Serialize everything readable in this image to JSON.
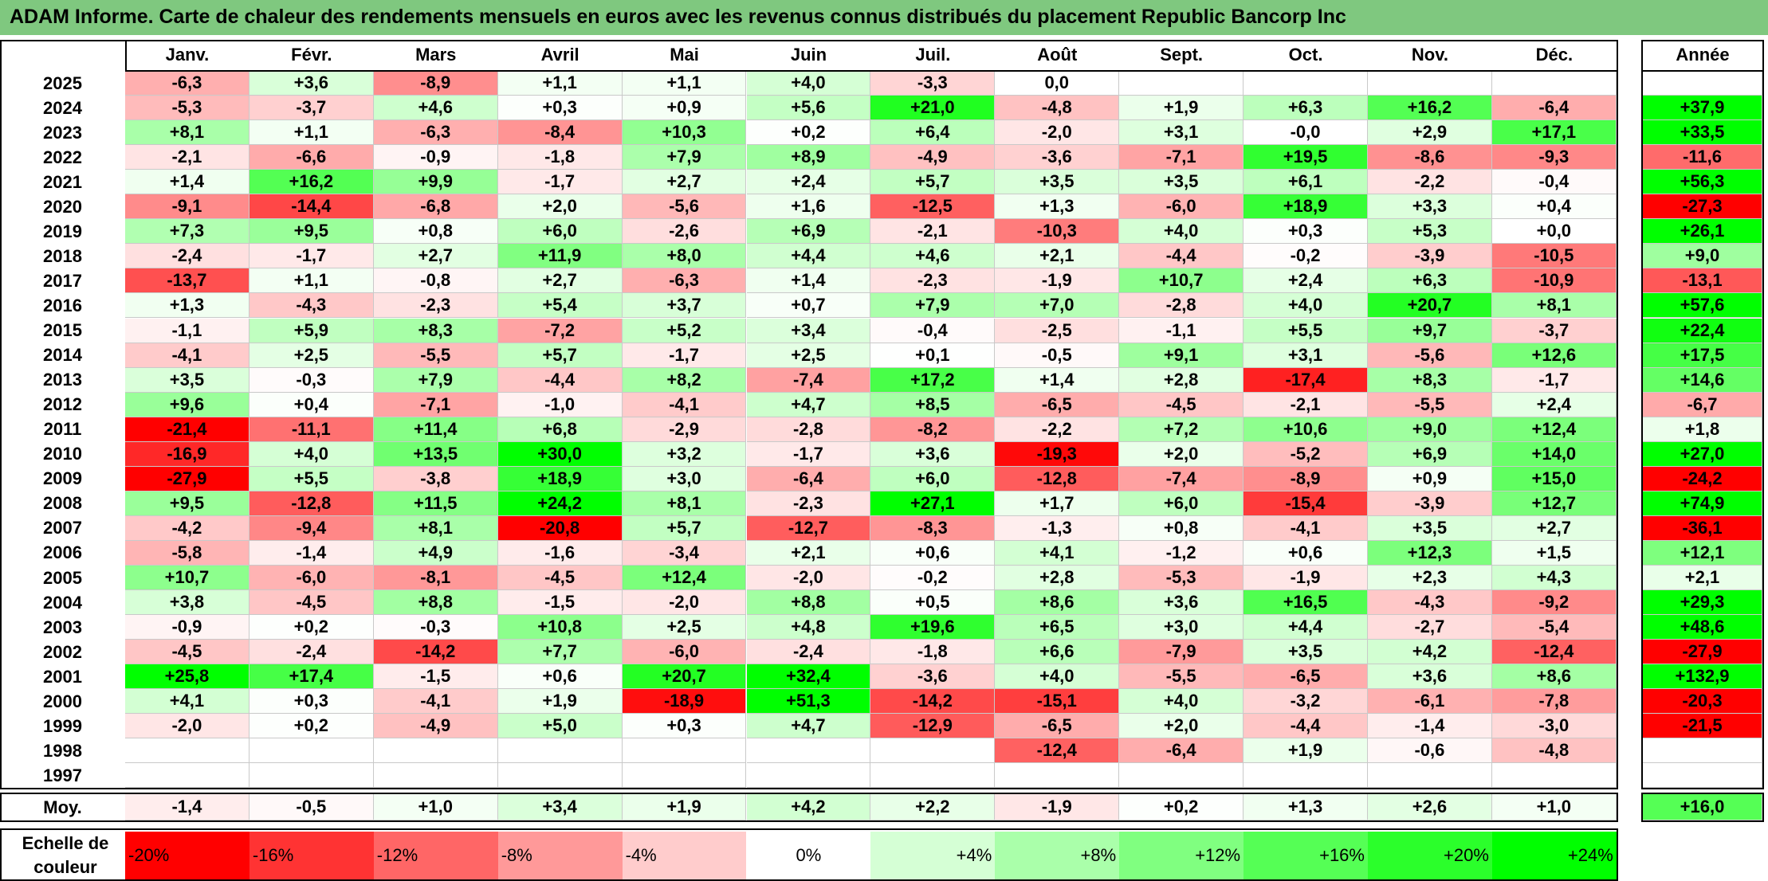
{
  "title": "ADAM Informe. Carte de chaleur des rendements mensuels en euros avec les revenus connus distribués du placement Republic Bancorp Inc",
  "chart_data": {
    "type": "heatmap",
    "months": [
      "Janv.",
      "Févr.",
      "Mars",
      "Avril",
      "Mai",
      "Juin",
      "Juil.",
      "Août",
      "Sept.",
      "Oct.",
      "Nov.",
      "Déc."
    ],
    "year_column_label": "Année",
    "rows": [
      {
        "year": "2025",
        "values": [
          "-6,3",
          "+3,6",
          "-8,9",
          "+1,1",
          "+1,1",
          "+4,0",
          "-3,3",
          "0,0",
          "",
          "",
          "",
          ""
        ],
        "annual": ""
      },
      {
        "year": "2024",
        "values": [
          "-5,3",
          "-3,7",
          "+4,6",
          "+0,3",
          "+0,9",
          "+5,6",
          "+21,0",
          "-4,8",
          "+1,9",
          "+6,3",
          "+16,2",
          "-6,4"
        ],
        "annual": "+37,9"
      },
      {
        "year": "2023",
        "values": [
          "+8,1",
          "+1,1",
          "-6,3",
          "-8,4",
          "+10,3",
          "+0,2",
          "+6,4",
          "-2,0",
          "+3,1",
          "-0,0",
          "+2,9",
          "+17,1"
        ],
        "annual": "+33,5"
      },
      {
        "year": "2022",
        "values": [
          "-2,1",
          "-6,6",
          "-0,9",
          "-1,8",
          "+7,9",
          "+8,9",
          "-4,9",
          "-3,6",
          "-7,1",
          "+19,5",
          "-8,6",
          "-9,3"
        ],
        "annual": "-11,6"
      },
      {
        "year": "2021",
        "values": [
          "+1,4",
          "+16,2",
          "+9,9",
          "-1,7",
          "+2,7",
          "+2,4",
          "+5,7",
          "+3,5",
          "+3,5",
          "+6,1",
          "-2,2",
          "-0,4"
        ],
        "annual": "+56,3"
      },
      {
        "year": "2020",
        "values": [
          "-9,1",
          "-14,4",
          "-6,8",
          "+2,0",
          "-5,6",
          "+1,6",
          "-12,5",
          "+1,3",
          "-6,0",
          "+18,9",
          "+3,3",
          "+0,4"
        ],
        "annual": "-27,3"
      },
      {
        "year": "2019",
        "values": [
          "+7,3",
          "+9,5",
          "+0,8",
          "+6,0",
          "-2,6",
          "+6,9",
          "-2,1",
          "-10,3",
          "+4,0",
          "+0,3",
          "+5,3",
          "+0,0"
        ],
        "annual": "+26,1"
      },
      {
        "year": "2018",
        "values": [
          "-2,4",
          "-1,7",
          "+2,7",
          "+11,9",
          "+8,0",
          "+4,4",
          "+4,6",
          "+2,1",
          "-4,4",
          "-0,2",
          "-3,9",
          "-10,5"
        ],
        "annual": "+9,0"
      },
      {
        "year": "2017",
        "values": [
          "-13,7",
          "+1,1",
          "-0,8",
          "+2,7",
          "-6,3",
          "+1,4",
          "-2,3",
          "-1,9",
          "+10,7",
          "+2,4",
          "+6,3",
          "-10,9"
        ],
        "annual": "-13,1"
      },
      {
        "year": "2016",
        "values": [
          "+1,3",
          "-4,3",
          "-2,3",
          "+5,4",
          "+3,7",
          "+0,7",
          "+7,9",
          "+7,0",
          "-2,8",
          "+4,0",
          "+20,7",
          "+8,1"
        ],
        "annual": "+57,6"
      },
      {
        "year": "2015",
        "values": [
          "-1,1",
          "+5,9",
          "+8,3",
          "-7,2",
          "+5,2",
          "+3,4",
          "-0,4",
          "-2,5",
          "-1,1",
          "+5,5",
          "+9,7",
          "-3,7"
        ],
        "annual": "+22,4"
      },
      {
        "year": "2014",
        "values": [
          "-4,1",
          "+2,5",
          "-5,5",
          "+5,7",
          "-1,7",
          "+2,5",
          "+0,1",
          "-0,5",
          "+9,1",
          "+3,1",
          "-5,6",
          "+12,6"
        ],
        "annual": "+17,5"
      },
      {
        "year": "2013",
        "values": [
          "+3,5",
          "-0,3",
          "+7,9",
          "-4,4",
          "+8,2",
          "-7,4",
          "+17,2",
          "+1,4",
          "+2,8",
          "-17,4",
          "+8,3",
          "-1,7"
        ],
        "annual": "+14,6"
      },
      {
        "year": "2012",
        "values": [
          "+9,6",
          "+0,4",
          "-7,1",
          "-1,0",
          "-4,1",
          "+4,7",
          "+8,5",
          "-6,5",
          "-4,5",
          "-2,1",
          "-5,5",
          "+2,4"
        ],
        "annual": "-6,7"
      },
      {
        "year": "2011",
        "values": [
          "-21,4",
          "-11,1",
          "+11,4",
          "+6,8",
          "-2,9",
          "-2,8",
          "-8,2",
          "-2,2",
          "+7,2",
          "+10,6",
          "+9,0",
          "+12,4"
        ],
        "annual": "+1,8"
      },
      {
        "year": "2010",
        "values": [
          "-16,9",
          "+4,0",
          "+13,5",
          "+30,0",
          "+3,2",
          "-1,7",
          "+3,6",
          "-19,3",
          "+2,0",
          "-5,2",
          "+6,9",
          "+14,0"
        ],
        "annual": "+27,0"
      },
      {
        "year": "2009",
        "values": [
          "-27,9",
          "+5,5",
          "-3,8",
          "+18,9",
          "+3,0",
          "-6,4",
          "+6,0",
          "-12,8",
          "-7,4",
          "-8,9",
          "+0,9",
          "+15,0"
        ],
        "annual": "-24,2"
      },
      {
        "year": "2008",
        "values": [
          "+9,5",
          "-12,8",
          "+11,5",
          "+24,2",
          "+8,1",
          "-2,3",
          "+27,1",
          "+1,7",
          "+6,0",
          "-15,4",
          "-3,9",
          "+12,7"
        ],
        "annual": "+74,9"
      },
      {
        "year": "2007",
        "values": [
          "-4,2",
          "-9,4",
          "+8,1",
          "-20,8",
          "+5,7",
          "-12,7",
          "-8,3",
          "-1,3",
          "+0,8",
          "-4,1",
          "+3,5",
          "+2,7"
        ],
        "annual": "-36,1"
      },
      {
        "year": "2006",
        "values": [
          "-5,8",
          "-1,4",
          "+4,9",
          "-1,6",
          "-3,4",
          "+2,1",
          "+0,6",
          "+4,1",
          "-1,2",
          "+0,6",
          "+12,3",
          "+1,5"
        ],
        "annual": "+12,1"
      },
      {
        "year": "2005",
        "values": [
          "+10,7",
          "-6,0",
          "-8,1",
          "-4,5",
          "+12,4",
          "-2,0",
          "-0,2",
          "+2,8",
          "-5,3",
          "-1,9",
          "+2,3",
          "+4,3"
        ],
        "annual": "+2,1"
      },
      {
        "year": "2004",
        "values": [
          "+3,8",
          "-4,5",
          "+8,8",
          "-1,5",
          "-2,0",
          "+8,8",
          "+0,5",
          "+8,6",
          "+3,6",
          "+16,5",
          "-4,3",
          "-9,2"
        ],
        "annual": "+29,3"
      },
      {
        "year": "2003",
        "values": [
          "-0,9",
          "+0,2",
          "-0,3",
          "+10,8",
          "+2,5",
          "+4,8",
          "+19,6",
          "+6,5",
          "+3,0",
          "+4,4",
          "-2,7",
          "-5,4"
        ],
        "annual": "+48,6"
      },
      {
        "year": "2002",
        "values": [
          "-4,5",
          "-2,4",
          "-14,2",
          "+7,7",
          "-6,0",
          "-2,4",
          "-1,8",
          "+6,6",
          "-7,9",
          "+3,5",
          "+4,2",
          "-12,4"
        ],
        "annual": "-27,9"
      },
      {
        "year": "2001",
        "values": [
          "+25,8",
          "+17,4",
          "-1,5",
          "+0,6",
          "+20,7",
          "+32,4",
          "-3,6",
          "+4,0",
          "-5,5",
          "-6,5",
          "+3,6",
          "+8,6"
        ],
        "annual": "+132,9"
      },
      {
        "year": "2000",
        "values": [
          "+4,1",
          "+0,3",
          "-4,1",
          "+1,9",
          "-18,9",
          "+51,3",
          "-14,2",
          "-15,1",
          "+4,0",
          "-3,2",
          "-6,1",
          "-7,8"
        ],
        "annual": "-20,3"
      },
      {
        "year": "1999",
        "values": [
          "-2,0",
          "+0,2",
          "-4,9",
          "+5,0",
          "+0,3",
          "+4,7",
          "-12,9",
          "-6,5",
          "+2,0",
          "-4,4",
          "-1,4",
          "-3,0"
        ],
        "annual": "-21,5"
      },
      {
        "year": "1998",
        "values": [
          "",
          "",
          "",
          "",
          "",
          "",
          "",
          "-12,4",
          "-6,4",
          "+1,9",
          "-0,6",
          "-4,8"
        ],
        "annual": ""
      },
      {
        "year": "1997",
        "values": [
          "",
          "",
          "",
          "",
          "",
          "",
          "",
          "",
          "",
          "",
          "",
          ""
        ],
        "annual": ""
      }
    ],
    "average": {
      "label": "Moy.",
      "values": [
        "-1,4",
        "-0,5",
        "+1,0",
        "+3,4",
        "+1,9",
        "+4,2",
        "+2,2",
        "-1,9",
        "+0,2",
        "+1,3",
        "+2,6",
        "+1,0"
      ],
      "annual": "+16,0"
    },
    "color_scale": {
      "label_line1": "Echelle de",
      "label_line2": "couleur",
      "stops": [
        "-20%",
        "-16%",
        "-12%",
        "-8%",
        "-4%",
        "0%",
        "+4%",
        "+8%",
        "+12%",
        "+16%",
        "+20%",
        "+24%"
      ],
      "negative_color": "#ff0000",
      "neutral_color": "#ffffff",
      "positive_color": "#00ff00"
    }
  }
}
